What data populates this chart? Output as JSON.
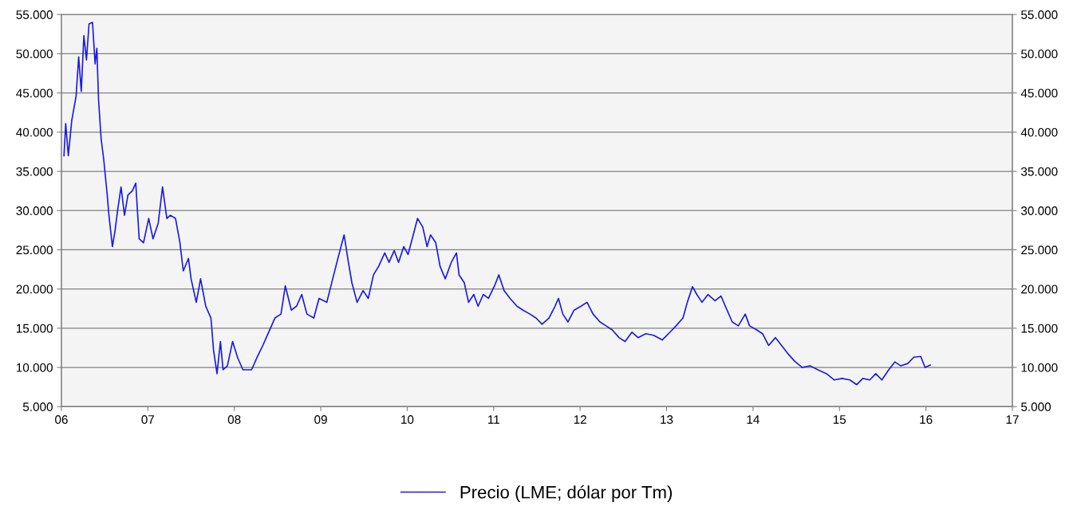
{
  "chart_data": {
    "type": "line",
    "x": [
      2006.03,
      2006.05,
      2006.08,
      2006.12,
      2006.17,
      2006.2,
      2006.23,
      2006.26,
      2006.29,
      2006.32,
      2006.36,
      2006.39,
      2006.41,
      2006.43,
      2006.46,
      2006.49,
      2006.53,
      2006.55,
      2006.59,
      2006.62,
      2006.65,
      2006.69,
      2006.73,
      2006.77,
      2006.82,
      2006.86,
      2006.9,
      2006.95,
      2007.01,
      2007.06,
      2007.12,
      2007.17,
      2007.22,
      2007.26,
      2007.32,
      2007.37,
      2007.41,
      2007.47,
      2007.5,
      2007.56,
      2007.61,
      2007.67,
      2007.73,
      2007.76,
      2007.8,
      2007.84,
      2007.87,
      2007.92,
      2007.98,
      2008.04,
      2008.1,
      2008.2,
      2008.26,
      2008.33,
      2008.41,
      2008.47,
      2008.54,
      2008.59,
      2008.66,
      2008.72,
      2008.78,
      2008.84,
      2008.92,
      2008.98,
      2009.07,
      2009.15,
      2009.21,
      2009.27,
      2009.32,
      2009.36,
      2009.42,
      2009.49,
      2009.55,
      2009.61,
      2009.67,
      2009.74,
      2009.79,
      2009.85,
      2009.9,
      2009.96,
      2010.01,
      2010.07,
      2010.12,
      2010.18,
      2010.23,
      2010.27,
      2010.33,
      2010.38,
      2010.44,
      2010.51,
      2010.57,
      2010.6,
      2010.66,
      2010.71,
      2010.77,
      2010.82,
      2010.88,
      2010.94,
      2011.01,
      2011.06,
      2011.12,
      2011.19,
      2011.27,
      2011.34,
      2011.42,
      2011.49,
      2011.56,
      2011.64,
      2011.71,
      2011.75,
      2011.8,
      2011.86,
      2011.93,
      2012.01,
      2012.08,
      2012.15,
      2012.23,
      2012.3,
      2012.37,
      2012.45,
      2012.52,
      2012.6,
      2012.67,
      2012.76,
      2012.85,
      2012.95,
      2013.04,
      2013.11,
      2013.19,
      2013.24,
      2013.3,
      2013.35,
      2013.41,
      2013.48,
      2013.56,
      2013.63,
      2013.68,
      2013.76,
      2013.83,
      2013.91,
      2013.96,
      2014.04,
      2014.11,
      2014.18,
      2014.26,
      2014.33,
      2014.4,
      2014.48,
      2014.57,
      2014.66,
      2014.75,
      2014.85,
      2014.94,
      2015.03,
      2015.12,
      2015.2,
      2015.27,
      2015.35,
      2015.42,
      2015.49,
      2015.57,
      2015.64,
      2015.71,
      2015.79,
      2015.86,
      2015.94,
      2015.99,
      2016.05
    ],
    "series": [
      {
        "name": "Precio (LME; dólar por Tm)",
        "color": "#1a1ae6",
        "values": [
          37000,
          41100,
          37000,
          41500,
          44600,
          49600,
          45200,
          52300,
          49200,
          53800,
          54000,
          48700,
          50700,
          44100,
          39100,
          36500,
          32000,
          29400,
          25400,
          27400,
          30000,
          33000,
          29400,
          32000,
          32500,
          33500,
          26400,
          25900,
          29000,
          26400,
          28400,
          33000,
          29000,
          29400,
          29000,
          26000,
          22300,
          23900,
          21300,
          18300,
          21300,
          17800,
          16300,
          12200,
          9200,
          13300,
          9700,
          10200,
          13300,
          11200,
          9700,
          9700,
          11200,
          12800,
          14800,
          16300,
          16800,
          20400,
          17300,
          17800,
          19300,
          16800,
          16300,
          18800,
          18300,
          21800,
          24400,
          26900,
          23400,
          20800,
          18300,
          19800,
          18800,
          21800,
          22900,
          24600,
          23400,
          24900,
          23400,
          25400,
          24400,
          26900,
          29000,
          27900,
          25400,
          26900,
          25900,
          22900,
          21300,
          23400,
          24600,
          21800,
          20800,
          18300,
          19300,
          17800,
          19300,
          18800,
          20400,
          21800,
          19800,
          18800,
          17800,
          17300,
          16800,
          16300,
          15500,
          16300,
          17800,
          18800,
          16800,
          15800,
          17300,
          17800,
          18300,
          16800,
          15800,
          15300,
          14800,
          13800,
          13300,
          14500,
          13800,
          14300,
          14100,
          13500,
          14500,
          15300,
          16300,
          18300,
          20300,
          19300,
          18300,
          19300,
          18500,
          19100,
          17800,
          15800,
          15300,
          16800,
          15300,
          14800,
          14300,
          12800,
          13800,
          12800,
          11800,
          10800,
          10000,
          10200,
          9700,
          9200,
          8400,
          8600,
          8400,
          7800,
          8600,
          8400,
          9200,
          8400,
          9700,
          10700,
          10200,
          10500,
          11300,
          11400,
          10000,
          10300
        ]
      }
    ],
    "xlim": [
      2006,
      2017
    ],
    "xticks": [
      {
        "value": 2006,
        "label": "06"
      },
      {
        "value": 2007,
        "label": "07"
      },
      {
        "value": 2008,
        "label": "08"
      },
      {
        "value": 2009,
        "label": "09"
      },
      {
        "value": 2010,
        "label": "10"
      },
      {
        "value": 2011,
        "label": "11"
      },
      {
        "value": 2012,
        "label": "12"
      },
      {
        "value": 2013,
        "label": "13"
      },
      {
        "value": 2014,
        "label": "14"
      },
      {
        "value": 2015,
        "label": "15"
      },
      {
        "value": 2016,
        "label": "16"
      },
      {
        "value": 2017,
        "label": "17"
      }
    ],
    "ylim": [
      5000,
      55000
    ],
    "yticks": [
      {
        "value": 5000,
        "label": "5.000"
      },
      {
        "value": 10000,
        "label": "10.000"
      },
      {
        "value": 15000,
        "label": "15.000"
      },
      {
        "value": 20000,
        "label": "20.000"
      },
      {
        "value": 25000,
        "label": "25.000"
      },
      {
        "value": 30000,
        "label": "30.000"
      },
      {
        "value": 35000,
        "label": "35.000"
      },
      {
        "value": 40000,
        "label": "40.000"
      },
      {
        "value": 45000,
        "label": "45.000"
      },
      {
        "value": 50000,
        "label": "50.000"
      },
      {
        "value": 55000,
        "label": "55.000"
      }
    ],
    "y2lim": [
      5000,
      55000
    ],
    "y2ticks": [
      {
        "value": 5000,
        "label": "5.000"
      },
      {
        "value": 10000,
        "label": "10.000"
      },
      {
        "value": 15000,
        "label": "15.000"
      },
      {
        "value": 20000,
        "label": "20.000"
      },
      {
        "value": 25000,
        "label": "25.000"
      },
      {
        "value": 30000,
        "label": "30.000"
      },
      {
        "value": 35000,
        "label": "35.000"
      },
      {
        "value": 40000,
        "label": "40.000"
      },
      {
        "value": 45000,
        "label": "45.000"
      },
      {
        "value": 50000,
        "label": "50.000"
      },
      {
        "value": 55000,
        "label": "55.000"
      }
    ],
    "grid": "y",
    "legend": "bottom",
    "marker": "none",
    "line_style": "solid"
  }
}
